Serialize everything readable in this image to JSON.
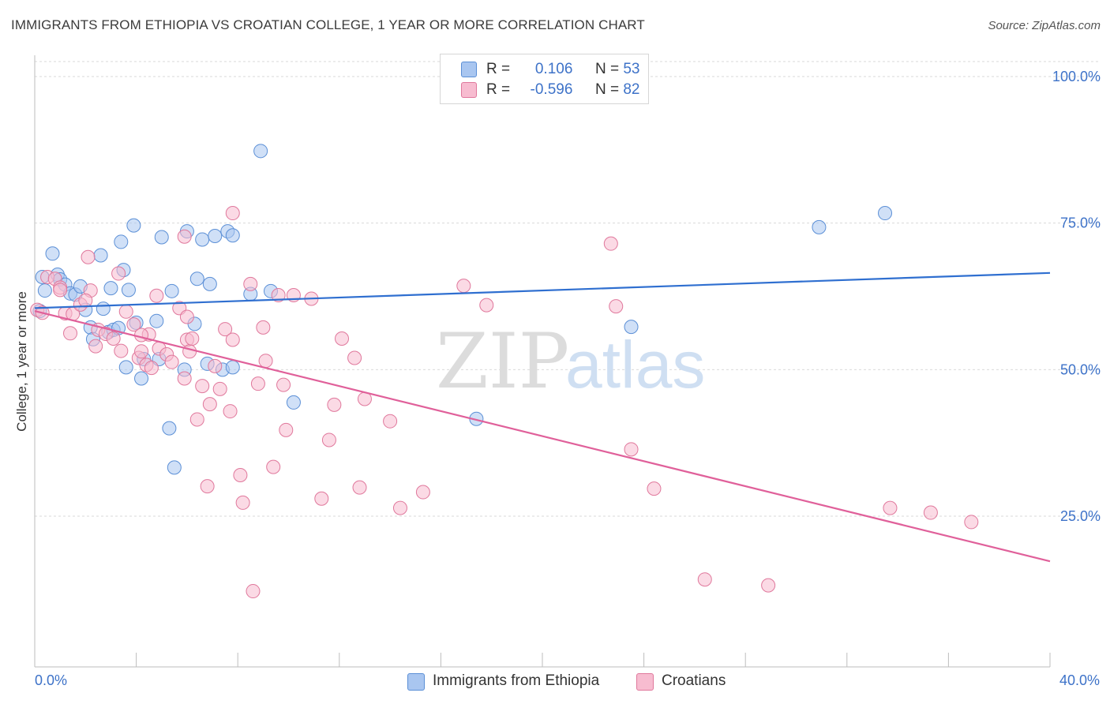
{
  "header": {
    "title": "IMMIGRANTS FROM ETHIOPIA VS CROATIAN COLLEGE, 1 YEAR OR MORE CORRELATION CHART",
    "source": "Source: ZipAtlas.com"
  },
  "watermark": {
    "zip": "ZIP",
    "atlas": "atlas"
  },
  "legend": {
    "rows": [
      {
        "r_label": "R =",
        "r_value": "0.106",
        "n_label": "N =",
        "n_value": "53",
        "color": "#a9c6f0",
        "border": "#5b8fd6"
      },
      {
        "r_label": "R =",
        "r_value": "-0.596",
        "n_label": "N =",
        "n_value": "82",
        "color": "#f7bcd0",
        "border": "#e0789c"
      }
    ]
  },
  "bottom_legend": [
    {
      "label": "Immigrants from Ethiopia",
      "color": "#a9c6f0",
      "border": "#5b8fd6"
    },
    {
      "label": "Croatians",
      "color": "#f7bcd0",
      "border": "#e0789c"
    }
  ],
  "chart_data": {
    "type": "scatter",
    "title": "IMMIGRANTS FROM ETHIOPIA VS CROATIAN COLLEGE, 1 YEAR OR MORE CORRELATION CHART",
    "xlabel": "",
    "ylabel": "College, 1 year or more",
    "xlim": [
      0,
      40
    ],
    "ylim": [
      0,
      105
    ],
    "x_tick_labels": [
      "0.0%",
      "40.0%"
    ],
    "y_ticks": [
      25,
      50,
      75,
      100
    ],
    "y_tick_labels": [
      "25.0%",
      "50.0%",
      "75.0%",
      "100.0%"
    ],
    "grid": true,
    "legend_position": "top-center",
    "series": [
      {
        "name": "Immigrants from Ethiopia",
        "color": "#5b8fd6",
        "fill": "#a9c6f0",
        "trend": {
          "x": [
            0,
            40
          ],
          "y": [
            60.5,
            66.5
          ],
          "color": "#2f6fd0"
        },
        "points": [
          [
            0.3,
            65.8
          ],
          [
            0.4,
            63.5
          ],
          [
            0.7,
            69.8
          ],
          [
            0.9,
            66.2
          ],
          [
            1.0,
            65.4
          ],
          [
            1.2,
            64.5
          ],
          [
            1.4,
            63.0
          ],
          [
            1.6,
            62.8
          ],
          [
            1.8,
            64.2
          ],
          [
            2.0,
            60.2
          ],
          [
            2.2,
            57.2
          ],
          [
            2.3,
            55.2
          ],
          [
            2.6,
            69.5
          ],
          [
            2.7,
            60.4
          ],
          [
            2.9,
            56.4
          ],
          [
            3.0,
            63.9
          ],
          [
            3.1,
            56.8
          ],
          [
            3.3,
            57.1
          ],
          [
            3.4,
            71.8
          ],
          [
            3.5,
            67.0
          ],
          [
            3.6,
            50.4
          ],
          [
            3.7,
            63.6
          ],
          [
            3.9,
            74.6
          ],
          [
            4.0,
            58.0
          ],
          [
            4.2,
            48.5
          ],
          [
            4.3,
            51.8
          ],
          [
            4.8,
            58.3
          ],
          [
            4.9,
            51.8
          ],
          [
            5.0,
            72.6
          ],
          [
            5.3,
            40.0
          ],
          [
            5.4,
            63.4
          ],
          [
            5.5,
            33.3
          ],
          [
            5.9,
            50.0
          ],
          [
            6.0,
            73.6
          ],
          [
            6.3,
            57.8
          ],
          [
            6.4,
            65.5
          ],
          [
            6.6,
            72.2
          ],
          [
            6.8,
            51.0
          ],
          [
            6.9,
            64.6
          ],
          [
            7.1,
            72.8
          ],
          [
            7.4,
            50.0
          ],
          [
            7.6,
            73.6
          ],
          [
            7.8,
            50.4
          ],
          [
            7.8,
            72.9
          ],
          [
            8.5,
            62.9
          ],
          [
            8.9,
            87.3
          ],
          [
            9.3,
            63.4
          ],
          [
            10.2,
            44.4
          ],
          [
            17.4,
            41.6
          ],
          [
            23.5,
            57.3
          ],
          [
            30.9,
            74.3
          ],
          [
            33.5,
            76.7
          ],
          [
            0.2,
            60.0
          ]
        ]
      },
      {
        "name": "Croatians",
        "color": "#e0789c",
        "fill": "#f7bcd0",
        "trend": {
          "x": [
            0,
            40
          ],
          "y": [
            60.0,
            17.3
          ],
          "color": "#e0609a"
        },
        "points": [
          [
            0.1,
            60.2
          ],
          [
            0.5,
            65.8
          ],
          [
            0.8,
            65.5
          ],
          [
            1.0,
            64.0
          ],
          [
            1.2,
            59.6
          ],
          [
            1.4,
            56.2
          ],
          [
            1.5,
            59.5
          ],
          [
            1.8,
            61.1
          ],
          [
            2.1,
            69.2
          ],
          [
            2.2,
            63.5
          ],
          [
            2.4,
            54.0
          ],
          [
            2.5,
            56.8
          ],
          [
            2.8,
            56.1
          ],
          [
            3.1,
            55.3
          ],
          [
            3.3,
            66.4
          ],
          [
            3.4,
            53.2
          ],
          [
            3.6,
            59.9
          ],
          [
            3.9,
            57.7
          ],
          [
            4.1,
            52.0
          ],
          [
            4.2,
            53.1
          ],
          [
            4.4,
            50.8
          ],
          [
            4.5,
            56.0
          ],
          [
            4.6,
            50.3
          ],
          [
            4.8,
            62.6
          ],
          [
            4.9,
            53.6
          ],
          [
            5.2,
            52.6
          ],
          [
            5.4,
            51.3
          ],
          [
            5.7,
            60.5
          ],
          [
            5.9,
            72.7
          ],
          [
            5.9,
            48.5
          ],
          [
            6.0,
            55.1
          ],
          [
            6.1,
            53.1
          ],
          [
            6.2,
            55.3
          ],
          [
            6.4,
            41.5
          ],
          [
            6.6,
            47.2
          ],
          [
            6.8,
            30.1
          ],
          [
            6.9,
            44.1
          ],
          [
            7.1,
            50.6
          ],
          [
            7.3,
            46.7
          ],
          [
            7.5,
            56.9
          ],
          [
            7.7,
            42.9
          ],
          [
            7.8,
            55.1
          ],
          [
            7.8,
            76.7
          ],
          [
            8.1,
            32.0
          ],
          [
            8.2,
            27.3
          ],
          [
            8.5,
            64.6
          ],
          [
            8.6,
            12.2
          ],
          [
            8.8,
            47.6
          ],
          [
            9.0,
            57.2
          ],
          [
            9.1,
            51.5
          ],
          [
            9.4,
            33.4
          ],
          [
            9.6,
            62.7
          ],
          [
            9.8,
            47.4
          ],
          [
            9.9,
            39.7
          ],
          [
            10.2,
            62.7
          ],
          [
            10.9,
            62.1
          ],
          [
            11.3,
            28.0
          ],
          [
            11.6,
            38.0
          ],
          [
            11.8,
            44.0
          ],
          [
            12.1,
            55.3
          ],
          [
            12.6,
            52.0
          ],
          [
            12.8,
            29.9
          ],
          [
            13.0,
            45.0
          ],
          [
            14.0,
            41.2
          ],
          [
            14.4,
            26.4
          ],
          [
            15.3,
            29.1
          ],
          [
            16.9,
            64.3
          ],
          [
            17.8,
            61.0
          ],
          [
            22.7,
            71.5
          ],
          [
            22.9,
            60.8
          ],
          [
            23.5,
            36.4
          ],
          [
            24.4,
            29.7
          ],
          [
            26.4,
            14.2
          ],
          [
            28.9,
            13.2
          ],
          [
            33.7,
            26.4
          ],
          [
            35.3,
            25.6
          ],
          [
            36.9,
            24.0
          ],
          [
            0.3,
            59.7
          ],
          [
            2.0,
            61.8
          ],
          [
            1.0,
            63.6
          ],
          [
            6.0,
            59.0
          ],
          [
            4.2,
            55.9
          ]
        ]
      }
    ]
  }
}
